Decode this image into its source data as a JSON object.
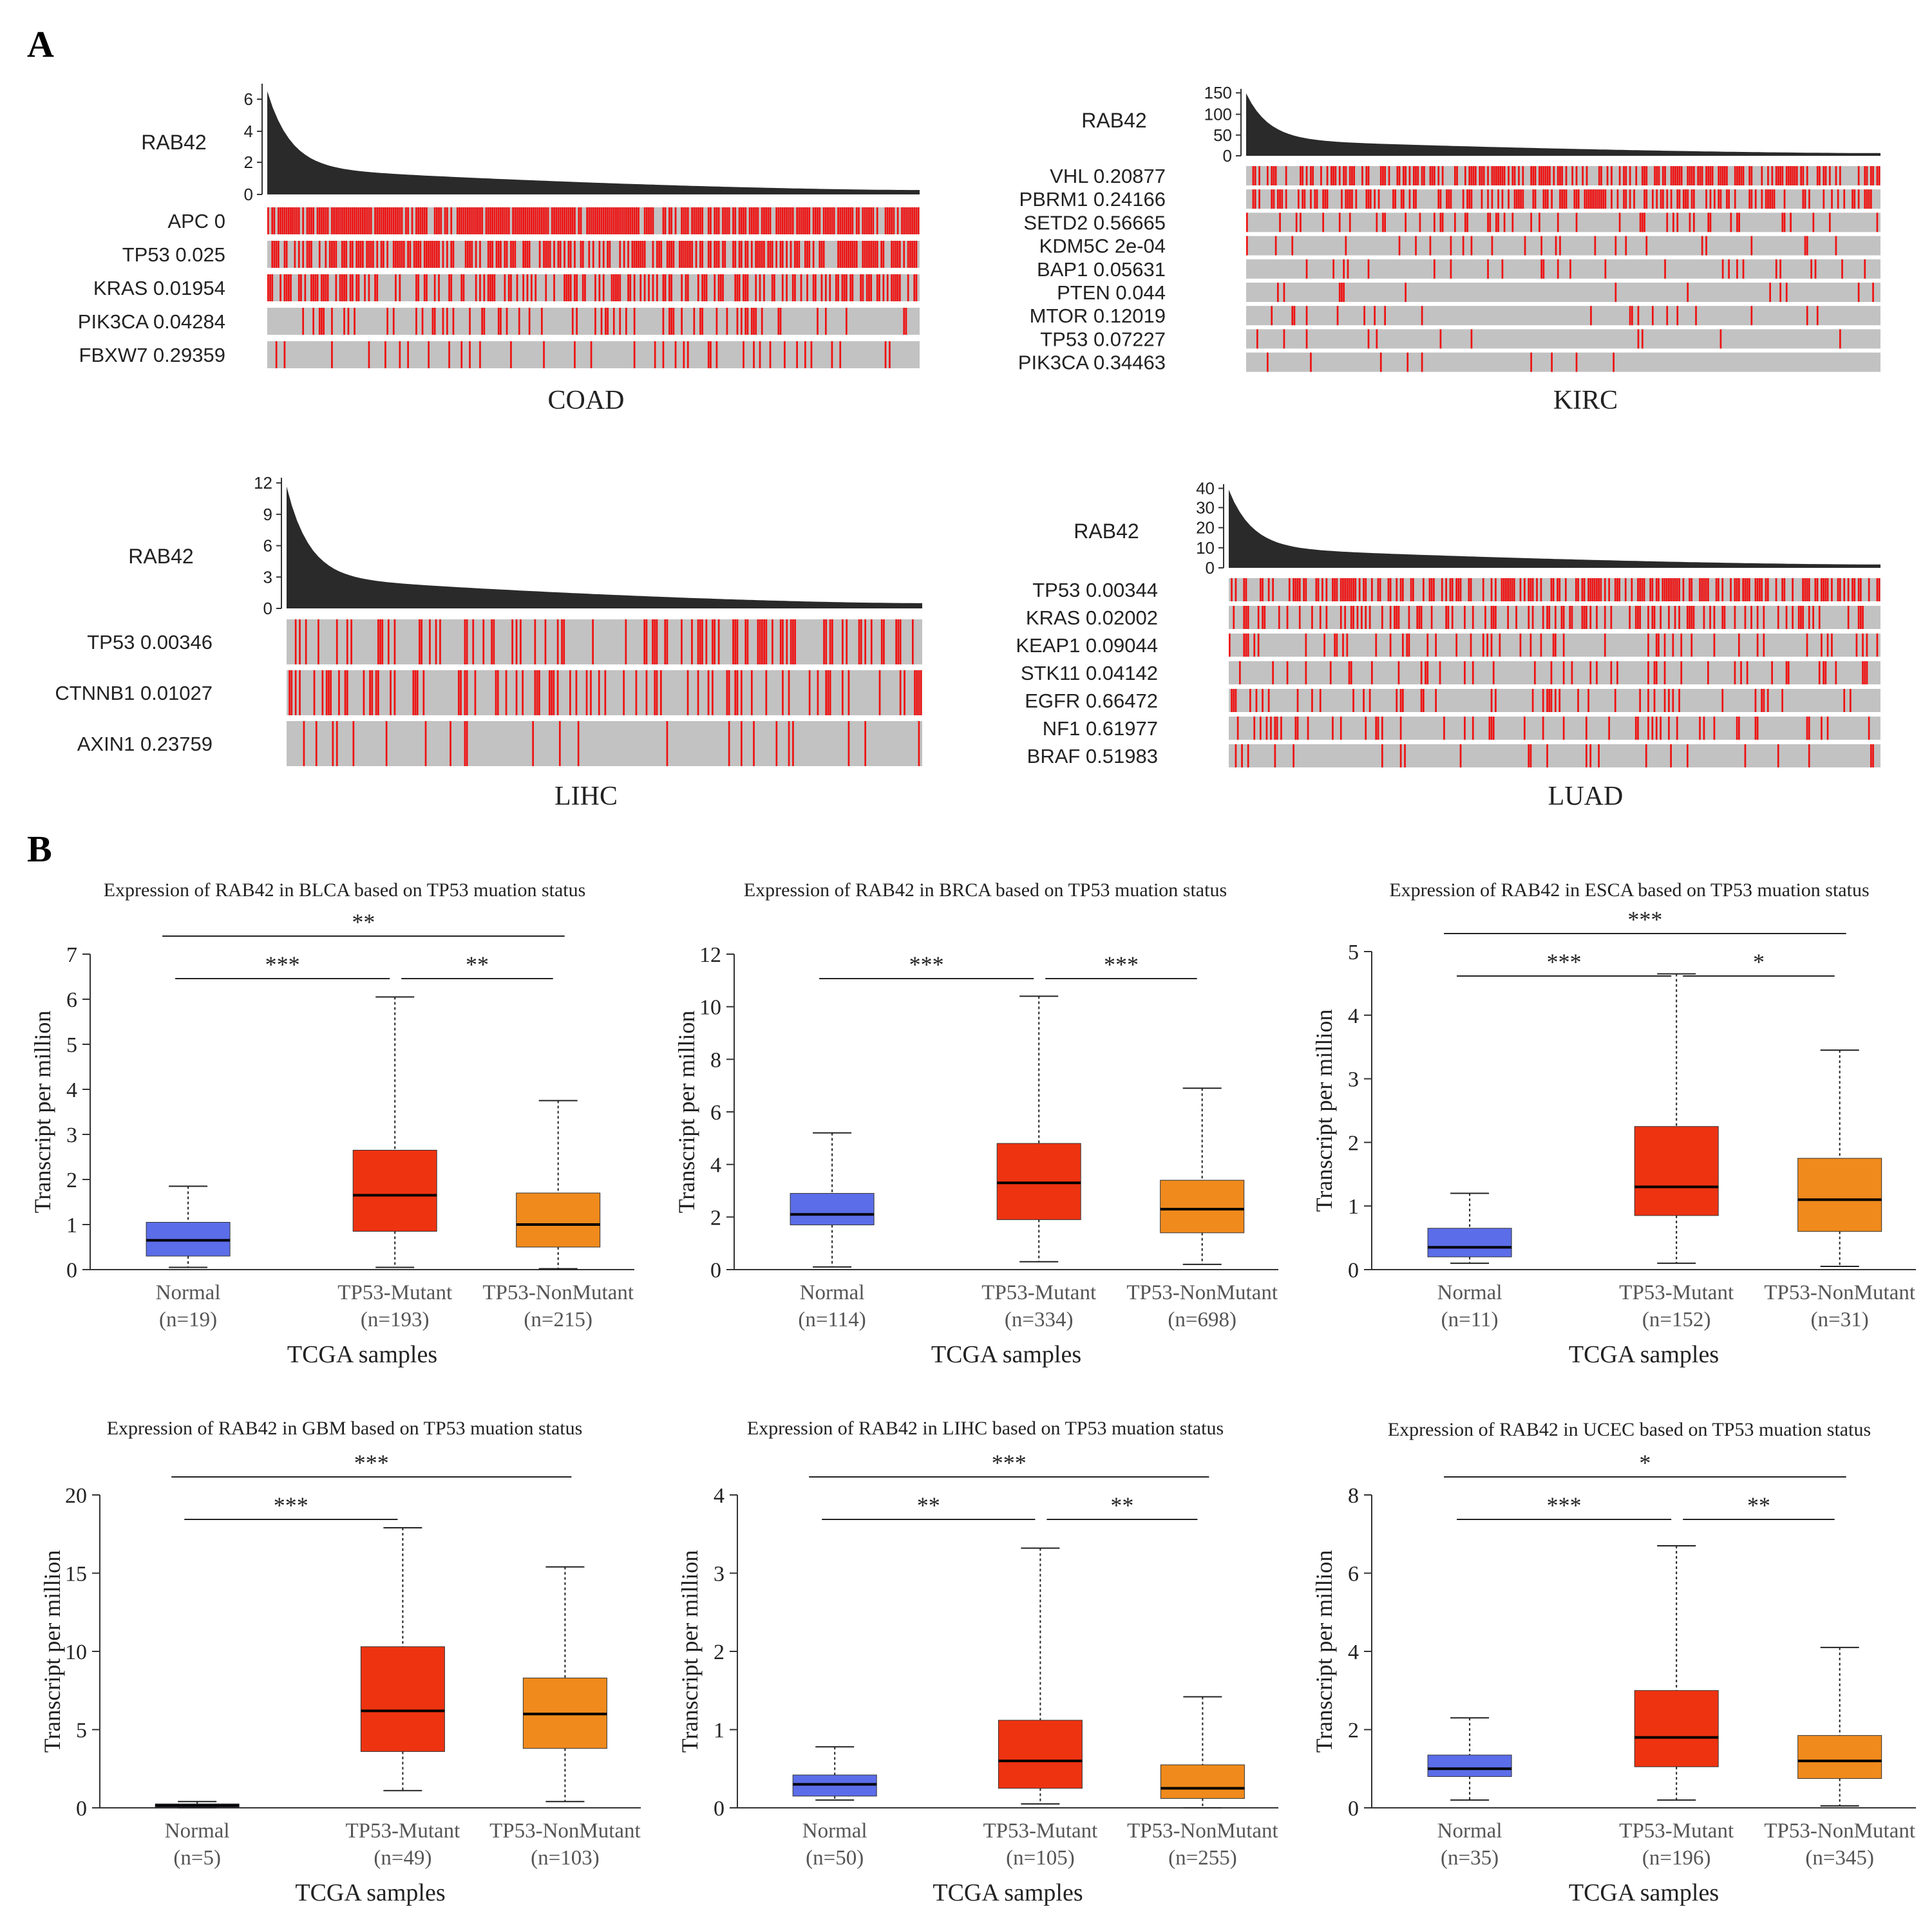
{
  "panel_labels": {
    "a": "A",
    "b": "B"
  },
  "colors": {
    "mutation": "#ee1111",
    "no_mutation": "#c2c2c2",
    "expression_fill": "#2a2a2a",
    "normal_box": "#5b6de8",
    "mutant_box": "#ee3311",
    "nonmutant_box": "#f08a1c"
  },
  "chart_data": [
    {
      "type": "oncoprint",
      "cancer": "COAD",
      "gene": "RAB42",
      "yticks": [
        "0",
        "2",
        "4",
        "6"
      ],
      "ymax": 7,
      "rows": [
        {
          "gene": "APC",
          "p": "0",
          "density": 0.82
        },
        {
          "gene": "TP53",
          "p": "0.025",
          "density": 0.62
        },
        {
          "gene": "KRAS",
          "p": "0.01954",
          "density": 0.45
        },
        {
          "gene": "PIK3CA",
          "p": "0.04284",
          "density": 0.22
        },
        {
          "gene": "FBXW7",
          "p": "0.29359",
          "density": 0.12
        }
      ]
    },
    {
      "type": "oncoprint",
      "cancer": "KIRC",
      "gene": "RAB42",
      "yticks": [
        "0",
        "50",
        "100",
        "150"
      ],
      "ymax": 160,
      "rows": [
        {
          "gene": "VHL",
          "p": "0.20877",
          "density": 0.55
        },
        {
          "gene": "PBRM1",
          "p": "0.24166",
          "density": 0.4
        },
        {
          "gene": "SETD2",
          "p": "0.56665",
          "density": 0.12
        },
        {
          "gene": "KDM5C",
          "p": "2e-04",
          "density": 0.06
        },
        {
          "gene": "BAP1",
          "p": "0.05631",
          "density": 0.1
        },
        {
          "gene": "PTEN",
          "p": "0.044",
          "density": 0.05
        },
        {
          "gene": "MTOR",
          "p": "0.12019",
          "density": 0.08
        },
        {
          "gene": "TP53",
          "p": "0.07227",
          "density": 0.04
        },
        {
          "gene": "PIK3CA",
          "p": "0.34463",
          "density": 0.03
        }
      ]
    },
    {
      "type": "oncoprint",
      "cancer": "LIHC",
      "gene": "RAB42",
      "yticks": [
        "0",
        "3",
        "6",
        "9",
        "12"
      ],
      "ymax": 12.5,
      "rows": [
        {
          "gene": "TP53",
          "p": "0.00346",
          "density": 0.3
        },
        {
          "gene": "CTNNB1",
          "p": "0.01027",
          "density": 0.25
        },
        {
          "gene": "AXIN1",
          "p": "0.23759",
          "density": 0.06
        }
      ]
    },
    {
      "type": "oncoprint",
      "cancer": "LUAD",
      "gene": "RAB42",
      "yticks": [
        "0",
        "10",
        "20",
        "30",
        "40"
      ],
      "ymax": 42,
      "rows": [
        {
          "gene": "TP53",
          "p": "0.00344",
          "density": 0.5
        },
        {
          "gene": "KRAS",
          "p": "0.02002",
          "density": 0.32
        },
        {
          "gene": "KEAP1",
          "p": "0.09044",
          "density": 0.18
        },
        {
          "gene": "STK11",
          "p": "0.04142",
          "density": 0.17
        },
        {
          "gene": "EGFR",
          "p": "0.66472",
          "density": 0.14
        },
        {
          "gene": "NF1",
          "p": "0.61977",
          "density": 0.12
        },
        {
          "gene": "BRAF",
          "p": "0.51983",
          "density": 0.08
        }
      ]
    },
    {
      "type": "box",
      "title": "Expression of RAB42 in BLCA based on TP53 muation status",
      "ylabel": "Transcript per million",
      "xlabel": "TCGA samples",
      "ylim": [
        0,
        7
      ],
      "yticks": [
        0,
        1,
        2,
        3,
        4,
        5,
        6,
        7
      ],
      "groups": [
        {
          "name": "Normal",
          "n": "(n=19)",
          "min": 0.05,
          "q1": 0.3,
          "median": 0.65,
          "q3": 1.05,
          "max": 1.85
        },
        {
          "name": "TP53-Mutant",
          "n": "(n=193)",
          "min": 0.05,
          "q1": 0.85,
          "median": 1.65,
          "q3": 2.65,
          "max": 6.05
        },
        {
          "name": "TP53-NonMutant",
          "n": "(n=215)",
          "min": 0.02,
          "q1": 0.5,
          "median": 1.0,
          "q3": 1.7,
          "max": 3.75
        }
      ],
      "sig": [
        {
          "from": 0,
          "to": 2,
          "label": "**",
          "level": 0
        },
        {
          "from": 0,
          "to": 1,
          "label": "***",
          "level": 1
        },
        {
          "from": 1,
          "to": 2,
          "label": "**",
          "level": 1
        }
      ]
    },
    {
      "type": "box",
      "title": "Expression of RAB42 in BRCA based on TP53 muation status",
      "ylabel": "Transcript per million",
      "xlabel": "TCGA samples",
      "ylim": [
        0,
        12
      ],
      "yticks": [
        0,
        2,
        4,
        6,
        8,
        10,
        12
      ],
      "groups": [
        {
          "name": "Normal",
          "n": "(n=114)",
          "min": 0.1,
          "q1": 1.7,
          "median": 2.1,
          "q3": 2.9,
          "max": 5.2
        },
        {
          "name": "TP53-Mutant",
          "n": "(n=334)",
          "min": 0.3,
          "q1": 1.9,
          "median": 3.3,
          "q3": 4.8,
          "max": 10.4
        },
        {
          "name": "TP53-NonMutant",
          "n": "(n=698)",
          "min": 0.2,
          "q1": 1.4,
          "median": 2.3,
          "q3": 3.4,
          "max": 6.9
        }
      ],
      "sig": [
        {
          "from": 0,
          "to": 1,
          "label": "***",
          "level": 1
        },
        {
          "from": 1,
          "to": 2,
          "label": "***",
          "level": 1
        }
      ]
    },
    {
      "type": "box",
      "title": "Expression of RAB42 in ESCA based on TP53 muation status",
      "ylabel": "Transcript per million",
      "xlabel": "TCGA samples",
      "ylim": [
        0,
        5
      ],
      "yticks": [
        0,
        1,
        2,
        3,
        4,
        5
      ],
      "groups": [
        {
          "name": "Normal",
          "n": "(n=11)",
          "min": 0.1,
          "q1": 0.2,
          "median": 0.35,
          "q3": 0.65,
          "max": 1.2
        },
        {
          "name": "TP53-Mutant",
          "n": "(n=152)",
          "min": 0.1,
          "q1": 0.85,
          "median": 1.3,
          "q3": 2.25,
          "max": 4.65
        },
        {
          "name": "TP53-NonMutant",
          "n": "(n=31)",
          "min": 0.05,
          "q1": 0.6,
          "median": 1.1,
          "q3": 1.75,
          "max": 3.45
        }
      ],
      "sig": [
        {
          "from": 0,
          "to": 2,
          "label": "***",
          "level": 0
        },
        {
          "from": 0,
          "to": 1,
          "label": "***",
          "level": 1
        },
        {
          "from": 1,
          "to": 2,
          "label": "*",
          "level": 1
        }
      ]
    },
    {
      "type": "box",
      "title": "Expression of RAB42 in GBM based on TP53 muation status",
      "ylabel": "Transcript per million",
      "xlabel": "TCGA samples",
      "ylim": [
        0,
        20
      ],
      "yticks": [
        0,
        5,
        10,
        15,
        20
      ],
      "groups": [
        {
          "name": "Normal",
          "n": "(n=5)",
          "min": 0.0,
          "q1": 0.05,
          "median": 0.15,
          "q3": 0.25,
          "max": 0.4
        },
        {
          "name": "TP53-Mutant",
          "n": "(n=49)",
          "min": 1.1,
          "q1": 3.6,
          "median": 6.2,
          "q3": 10.3,
          "max": 17.9
        },
        {
          "name": "TP53-NonMutant",
          "n": "(n=103)",
          "min": 0.4,
          "q1": 3.8,
          "median": 6.0,
          "q3": 8.3,
          "max": 15.4
        }
      ],
      "sig": [
        {
          "from": 0,
          "to": 2,
          "label": "***",
          "level": 0
        },
        {
          "from": 0,
          "to": 1,
          "label": "***",
          "level": 1
        }
      ]
    },
    {
      "type": "box",
      "title": "Expression of RAB42 in LIHC based on TP53 muation status",
      "ylabel": "Transcript per million",
      "xlabel": "TCGA samples",
      "ylim": [
        0,
        4
      ],
      "yticks": [
        0,
        1,
        2,
        3,
        4
      ],
      "groups": [
        {
          "name": "Normal",
          "n": "(n=50)",
          "min": 0.1,
          "q1": 0.15,
          "median": 0.3,
          "q3": 0.42,
          "max": 0.78
        },
        {
          "name": "TP53-Mutant",
          "n": "(n=105)",
          "min": 0.05,
          "q1": 0.25,
          "median": 0.6,
          "q3": 1.12,
          "max": 3.32
        },
        {
          "name": "TP53-NonMutant",
          "n": "(n=255)",
          "min": 0.0,
          "q1": 0.12,
          "median": 0.25,
          "q3": 0.55,
          "max": 1.42
        }
      ],
      "sig": [
        {
          "from": 0,
          "to": 2,
          "label": "***",
          "level": 0
        },
        {
          "from": 0,
          "to": 1,
          "label": "**",
          "level": 1
        },
        {
          "from": 1,
          "to": 2,
          "label": "**",
          "level": 1
        }
      ]
    },
    {
      "type": "box",
      "title": "Expression of RAB42 in UCEC based on TP53 muation status",
      "ylabel": "Transcript per million",
      "xlabel": "TCGA samples",
      "ylim": [
        0,
        8
      ],
      "yticks": [
        0,
        2,
        4,
        6,
        8
      ],
      "groups": [
        {
          "name": "Normal",
          "n": "(n=35)",
          "min": 0.2,
          "q1": 0.8,
          "median": 1.0,
          "q3": 1.35,
          "max": 2.3
        },
        {
          "name": "TP53-Mutant",
          "n": "(n=196)",
          "min": 0.2,
          "q1": 1.05,
          "median": 1.8,
          "q3": 3.0,
          "max": 6.7
        },
        {
          "name": "TP53-NonMutant",
          "n": "(n=345)",
          "min": 0.05,
          "q1": 0.75,
          "median": 1.2,
          "q3": 1.85,
          "max": 4.1
        }
      ],
      "sig": [
        {
          "from": 0,
          "to": 2,
          "label": "*",
          "level": 0
        },
        {
          "from": 0,
          "to": 1,
          "label": "***",
          "level": 1
        },
        {
          "from": 1,
          "to": 2,
          "label": "**",
          "level": 1
        }
      ]
    }
  ]
}
